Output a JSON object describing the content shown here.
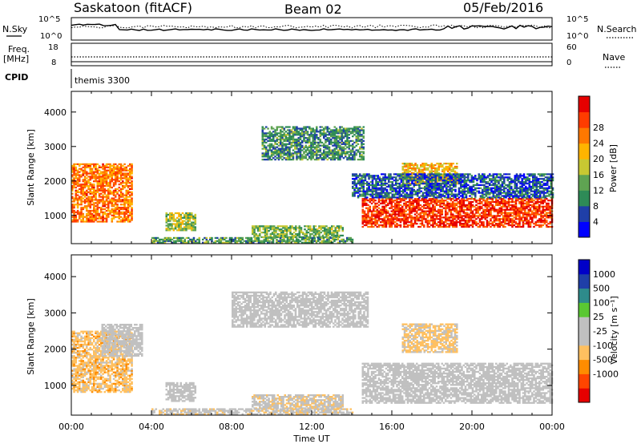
{
  "header": {
    "station": "Saskatoon (fitACF)",
    "beam": "Beam 02",
    "date": "05/Feb/2016"
  },
  "info_panels": {
    "nsky_label": "N.Sky",
    "nsky_ticks": [
      "10^5",
      "10^0"
    ],
    "nsearch_label": "N.Search",
    "nsearch_ticks": [
      "10^5",
      "10^0"
    ],
    "freq_label_1": "Freq.",
    "freq_label_2": "[MHz]",
    "freq_ticks": [
      "18",
      "8"
    ],
    "nave_label": "Nave",
    "nave_ticks": [
      "60",
      "0"
    ],
    "cpid_label": "CPID",
    "cpid_text": "themis 3300"
  },
  "colors": {
    "power": [
      "#0000ff",
      "#1f3fa8",
      "#2e8b57",
      "#5fa352",
      "#c8c832",
      "#ffb400",
      "#ff7800",
      "#ff3c00",
      "#e60000"
    ],
    "velocity": [
      "#e60000",
      "#ff4500",
      "#ff8c00",
      "#ffc060",
      "#c0c0c0",
      "#c0c0c0",
      "#5ac832",
      "#2e8b8b",
      "#1f3fa8",
      "#0000c8"
    ]
  },
  "chart_data": [
    {
      "type": "heatmap",
      "name": "power",
      "xlabel": "Time UT",
      "ylabel": "Slant Range [km]",
      "xlim": [
        0,
        24
      ],
      "ylim": [
        180,
        4600
      ],
      "x_tick_labels": [
        "00:00",
        "04:00",
        "08:00",
        "12:00",
        "16:00",
        "20:00",
        "00:00"
      ],
      "y_ticks": [
        1000,
        2000,
        3000,
        4000
      ],
      "colorbar_label": "Power [dB]",
      "colorbar_ticks": [
        "4",
        "8",
        "12",
        "16",
        "20",
        "24",
        "28"
      ],
      "colorbar_range": [
        0,
        30
      ],
      "regions": [
        {
          "t": [
            0.0,
            3.0
          ],
          "r": [
            800,
            2500
          ],
          "v": 22
        },
        {
          "t": [
            4.7,
            6.2
          ],
          "r": [
            550,
            1050
          ],
          "v": 14
        },
        {
          "t": [
            9.0,
            13.5
          ],
          "r": [
            350,
            700
          ],
          "v": 12
        },
        {
          "t": [
            9.5,
            14.6
          ],
          "r": [
            2600,
            3550
          ],
          "v": 9
        },
        {
          "t": [
            14.5,
            24.0
          ],
          "r": [
            650,
            1500
          ],
          "v": 26
        },
        {
          "t": [
            16.5,
            19.2
          ],
          "r": [
            1900,
            2500
          ],
          "v": 18
        },
        {
          "t": [
            14.0,
            24.0
          ],
          "r": [
            1500,
            2200
          ],
          "v": 6
        },
        {
          "t": [
            4.0,
            14.0
          ],
          "r": [
            190,
            350
          ],
          "v": 10
        }
      ]
    },
    {
      "type": "heatmap",
      "name": "velocity",
      "xlabel": "Time UT",
      "ylabel": "Slant Range [km]",
      "xlim": [
        0,
        24
      ],
      "ylim": [
        180,
        4600
      ],
      "x_tick_labels": [
        "00:00",
        "04:00",
        "08:00",
        "12:00",
        "16:00",
        "20:00",
        "00:00"
      ],
      "y_ticks": [
        1000,
        2000,
        3000,
        4000
      ],
      "colorbar_label": "Velocity [m s⁻¹]",
      "colorbar_ticks": [
        "1000",
        "500",
        "100",
        "25",
        "-25",
        "-100",
        "-500",
        "-1000"
      ],
      "colorbar_range": [
        -1000,
        1000
      ],
      "regions": [
        {
          "t": [
            0.0,
            3.0
          ],
          "r": [
            800,
            2500
          ],
          "v": -300
        },
        {
          "t": [
            1.5,
            3.5
          ],
          "r": [
            1800,
            2700
          ],
          "v": 0
        },
        {
          "t": [
            4.7,
            6.2
          ],
          "r": [
            550,
            1050
          ],
          "v": 0
        },
        {
          "t": [
            9.0,
            13.5
          ],
          "r": [
            350,
            750
          ],
          "v": -150
        },
        {
          "t": [
            8.0,
            14.8
          ],
          "r": [
            2600,
            3550
          ],
          "v": 0
        },
        {
          "t": [
            14.5,
            24.0
          ],
          "r": [
            500,
            1600
          ],
          "v": 0
        },
        {
          "t": [
            16.5,
            19.2
          ],
          "r": [
            1900,
            2700
          ],
          "v": -250
        },
        {
          "t": [
            4.0,
            14.0
          ],
          "r": [
            190,
            350
          ],
          "v": -120
        }
      ]
    }
  ]
}
